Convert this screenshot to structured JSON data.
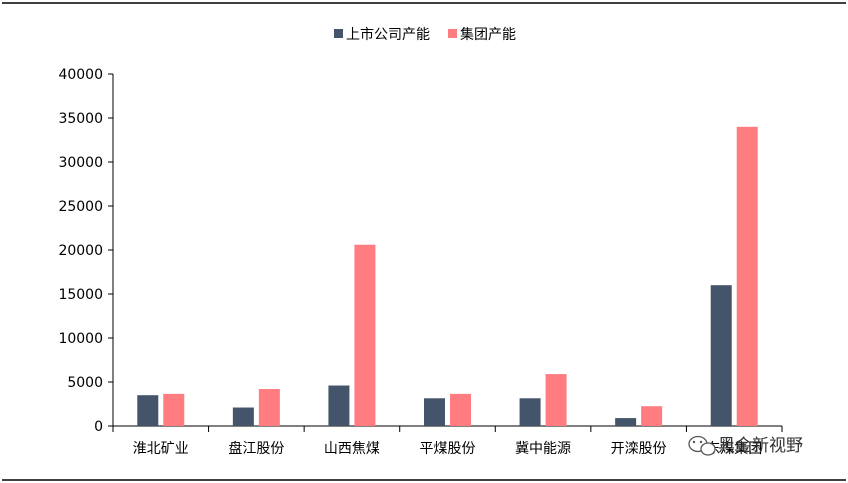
{
  "chart_data": {
    "type": "bar",
    "categories": [
      "淮北矿业",
      "盘江股份",
      "山西焦煤",
      "平煤股份",
      "冀中能源",
      "开滦股份",
      "东煤集团"
    ],
    "series": [
      {
        "name": "上市公司产能",
        "color": "#44546a",
        "values": [
          3500,
          2100,
          4600,
          3150,
          3150,
          900,
          16000
        ]
      },
      {
        "name": "集团产能",
        "color": "#ff7c80",
        "values": [
          3650,
          4200,
          20600,
          3650,
          5900,
          2250,
          34000
        ]
      }
    ],
    "title": "",
    "xlabel": "",
    "ylabel": "",
    "ylim": [
      0,
      40000
    ],
    "yticks": [
      0,
      5000,
      10000,
      15000,
      20000,
      25000,
      30000,
      35000,
      40000
    ],
    "legend_position": "top-center",
    "grid": false
  },
  "watermark": {
    "text": "黑金新视野",
    "icon": "wechat-icon"
  }
}
